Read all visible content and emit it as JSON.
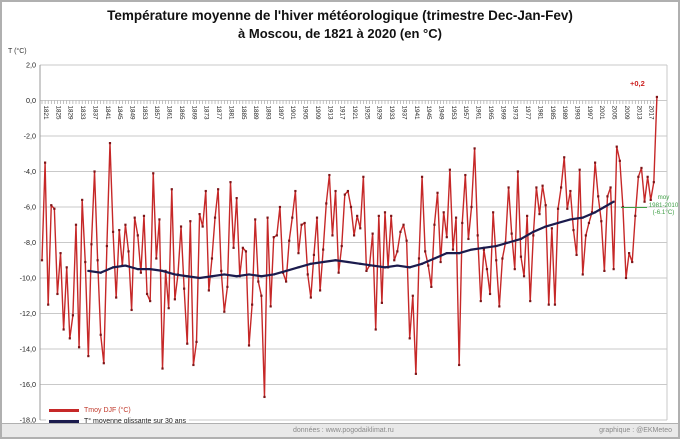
{
  "title": {
    "line1": "Température moyenne de l'hiver météorologique (trimestre Dec-Jan-Fev)",
    "line2": "à Moscou, de 1821 à 2020 (en °C)"
  },
  "footer": {
    "source": "données : www.pogodaiklimat.ru",
    "credit": "graphique : @EKMeteo"
  },
  "chart_data": {
    "type": "line",
    "title": "Température moyenne de l'hiver météorologique (trimestre Dec-Jan-Fev) à Moscou, de 1821 à 2020 (en °C)",
    "xlabel": "",
    "ylabel": "T (°C)",
    "ylim": [
      -18,
      2
    ],
    "ytick_step": 2,
    "decimal_separator": ",",
    "x_start": 1821,
    "x_end": 2020,
    "x_label_step": 4,
    "x_label_last": 2017,
    "grid": "horizontal-only",
    "legend_position": "bottom-left",
    "colors": {
      "grid": "#c9c9c9",
      "axis": "#999999",
      "tick_text": "#222222"
    },
    "series": [
      {
        "name": "Tmoy DJF (°C)",
        "type": "line",
        "color": "#c62828",
        "marker_color": "#7d1518",
        "label_color": "#c0392b",
        "x_first_year": 1821,
        "values": [
          -9.0,
          -3.5,
          -11.5,
          -5.9,
          -6.1,
          -10.9,
          -8.6,
          -12.9,
          -9.4,
          -13.4,
          -12.1,
          -7.0,
          -13.9,
          -5.6,
          -9.1,
          -14.4,
          -8.1,
          -4.0,
          -9.0,
          -13.2,
          -14.8,
          -8.2,
          -2.4,
          -7.4,
          -11.1,
          -7.3,
          -9.3,
          -7.0,
          -8.5,
          -11.8,
          -6.6,
          -7.6,
          -9.7,
          -6.5,
          -10.9,
          -11.3,
          -4.1,
          -8.9,
          -6.7,
          -15.1,
          -9.6,
          -11.7,
          -5.0,
          -11.2,
          -9.8,
          -7.1,
          -10.6,
          -13.7,
          -6.8,
          -14.9,
          -13.6,
          -6.4,
          -7.1,
          -5.1,
          -10.7,
          -8.9,
          -6.6,
          -5.0,
          -9.6,
          -11.9,
          -10.5,
          -4.6,
          -8.3,
          -5.5,
          -9.9,
          -8.3,
          -8.5,
          -13.8,
          -11.5,
          -6.7,
          -10.2,
          -11.0,
          -16.7,
          -6.6,
          -11.6,
          -7.7,
          -7.6,
          -6.0,
          -9.7,
          -10.2,
          -7.9,
          -6.6,
          -5.1,
          -8.6,
          -7.0,
          -6.9,
          -9.8,
          -11.1,
          -8.7,
          -6.6,
          -10.7,
          -8.4,
          -5.8,
          -4.2,
          -7.6,
          -5.1,
          -9.7,
          -8.2,
          -5.3,
          -5.1,
          -6.0,
          -7.6,
          -6.5,
          -7.2,
          -4.3,
          -9.6,
          -9.3,
          -7.5,
          -12.9,
          -6.5,
          -11.4,
          -6.3,
          -9.4,
          -6.5,
          -9.0,
          -8.5,
          -7.4,
          -7.0,
          -7.9,
          -13.4,
          -11.0,
          -15.4,
          -8.9,
          -4.3,
          -8.5,
          -9.3,
          -10.5,
          -7.0,
          -5.2,
          -9.1,
          -6.3,
          -7.7,
          -3.9,
          -8.4,
          -6.6,
          -14.9,
          -6.9,
          -4.2,
          -7.8,
          -6.0,
          -2.7,
          -7.6,
          -11.3,
          -8.4,
          -9.5,
          -10.9,
          -6.3,
          -9.0,
          -11.6,
          -8.9,
          -8.0,
          -4.9,
          -7.5,
          -9.5,
          -4.0,
          -8.8,
          -9.9,
          -6.5,
          -11.3,
          -7.6,
          -4.9,
          -6.4,
          -4.8,
          -5.9,
          -11.5,
          -7.2,
          -11.5,
          -6.1,
          -4.9,
          -3.2,
          -6.1,
          -5.1,
          -7.3,
          -8.7,
          -3.9,
          -9.8,
          -7.6,
          -6.9,
          -6.3,
          -3.5,
          -5.4,
          -6.8,
          -9.6,
          -5.4,
          -4.9,
          -9.5,
          -2.6,
          -3.4,
          -6.0,
          -10.0,
          -8.6,
          -9.1,
          -6.5,
          -4.3,
          -3.8,
          -5.7,
          -4.3,
          -5.6,
          -4.6,
          0.2
        ]
      },
      {
        "name": "T° moyenne glissante sur 30 ans",
        "type": "line",
        "color": "#1b1b4d",
        "marker_color": "#1b1b4d",
        "label_color": "#222222",
        "points": [
          [
            1836,
            -9.6
          ],
          [
            1840,
            -9.7
          ],
          [
            1844,
            -9.4
          ],
          [
            1848,
            -9.3
          ],
          [
            1852,
            -9.5
          ],
          [
            1856,
            -9.5
          ],
          [
            1860,
            -9.6
          ],
          [
            1864,
            -9.8
          ],
          [
            1868,
            -9.9
          ],
          [
            1872,
            -10.0
          ],
          [
            1876,
            -9.9
          ],
          [
            1880,
            -9.8
          ],
          [
            1884,
            -9.9
          ],
          [
            1888,
            -9.8
          ],
          [
            1892,
            -9.9
          ],
          [
            1896,
            -9.8
          ],
          [
            1900,
            -9.6
          ],
          [
            1904,
            -9.4
          ],
          [
            1908,
            -9.2
          ],
          [
            1912,
            -9.1
          ],
          [
            1916,
            -9.0
          ],
          [
            1920,
            -9.1
          ],
          [
            1924,
            -9.2
          ],
          [
            1928,
            -9.3
          ],
          [
            1932,
            -9.4
          ],
          [
            1936,
            -9.3
          ],
          [
            1940,
            -9.4
          ],
          [
            1944,
            -9.2
          ],
          [
            1948,
            -8.9
          ],
          [
            1952,
            -8.6
          ],
          [
            1956,
            -8.6
          ],
          [
            1960,
            -8.4
          ],
          [
            1964,
            -8.3
          ],
          [
            1968,
            -8.2
          ],
          [
            1972,
            -8.0
          ],
          [
            1976,
            -7.8
          ],
          [
            1980,
            -7.4
          ],
          [
            1984,
            -7.1
          ],
          [
            1988,
            -6.9
          ],
          [
            1992,
            -6.7
          ],
          [
            1996,
            -6.6
          ],
          [
            2000,
            -6.3
          ],
          [
            2003,
            -6.0
          ],
          [
            2005,
            -5.8
          ],
          [
            2006,
            -5.7
          ]
        ]
      }
    ],
    "annotations": {
      "last_value": "+0,2",
      "last_value_color": "#cc2222",
      "mean_lines": [
        "moy",
        "1981-2010",
        "(-6.1°C)"
      ],
      "mean_color": "#3f9e46",
      "mean_level": -6.1
    }
  }
}
